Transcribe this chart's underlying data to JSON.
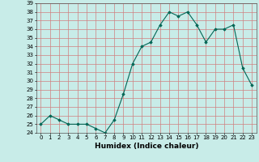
{
  "x": [
    0,
    1,
    2,
    3,
    4,
    5,
    6,
    7,
    8,
    9,
    10,
    11,
    12,
    13,
    14,
    15,
    16,
    17,
    18,
    19,
    20,
    21,
    22,
    23
  ],
  "y": [
    25,
    26,
    25.5,
    25,
    25,
    25,
    24.5,
    24,
    25.5,
    28.5,
    32,
    34,
    34.5,
    36.5,
    38,
    37.5,
    38,
    36.5,
    34.5,
    36,
    36,
    36.5,
    31.5,
    29.5
  ],
  "line_color": "#006655",
  "marker": "D",
  "marker_size": 1.8,
  "bg_color": "#c8ece8",
  "grid_color": "#d08080",
  "xlabel": "Humidex (Indice chaleur)",
  "ylim": [
    24,
    39
  ],
  "xlim": [
    -0.5,
    23.5
  ],
  "yticks": [
    24,
    25,
    26,
    27,
    28,
    29,
    30,
    31,
    32,
    33,
    34,
    35,
    36,
    37,
    38,
    39
  ],
  "xticks": [
    0,
    1,
    2,
    3,
    4,
    5,
    6,
    7,
    8,
    9,
    10,
    11,
    12,
    13,
    14,
    15,
    16,
    17,
    18,
    19,
    20,
    21,
    22,
    23
  ],
  "tick_fontsize": 5,
  "xlabel_fontsize": 6.5,
  "linewidth": 0.8
}
